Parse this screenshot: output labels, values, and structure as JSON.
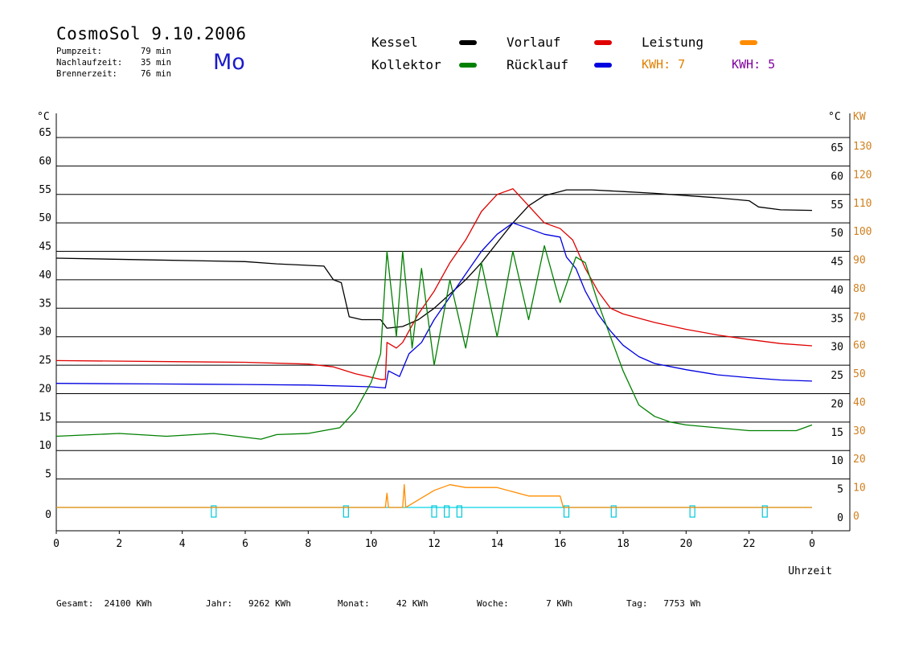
{
  "header": {
    "title": "CosmoSol 9.10.2006",
    "day": "Mo",
    "stats": [
      {
        "label": "Pumpzeit:",
        "value": "79 min"
      },
      {
        "label": "Nachlaufzeit:",
        "value": "35 min"
      },
      {
        "label": "Brennerzeit:",
        "value": "76 min"
      }
    ]
  },
  "legend": {
    "items": [
      {
        "label": "Kessel",
        "color": "#000000"
      },
      {
        "label": "Vorlauf",
        "color": "#e00000"
      },
      {
        "label": "Leistung",
        "color": "#ff8c00"
      },
      {
        "label": "Kollektor",
        "color": "#008000"
      },
      {
        "label": "Rücklauf",
        "color": "#0000e0"
      }
    ],
    "kwh1": {
      "text": "KWH: 7",
      "color": "#e08000"
    },
    "kwh2": {
      "text": "KWH: 5",
      "color": "#8000a0"
    }
  },
  "footer": [
    {
      "label": "Gesamt:",
      "value": "24100 KWh"
    },
    {
      "label": "Jahr:",
      "value": "9262 KWh"
    },
    {
      "label": "Monat:",
      "value": "42 KWh"
    },
    {
      "label": "Woche:",
      "value": "7 KWh"
    },
    {
      "label": "Tag:",
      "value": "7753 Wh"
    }
  ],
  "chart_data": {
    "type": "line",
    "xlabel": "Uhrzeit",
    "y_left_unit": "°C",
    "y_right_unit": "°C",
    "y_power_unit": "KW",
    "xlim": [
      0,
      24
    ],
    "ylim": [
      0,
      65
    ],
    "x_ticks": [
      "0",
      "2",
      "4",
      "6",
      "8",
      "10",
      "12",
      "14",
      "16",
      "18",
      "20",
      "22",
      "0"
    ],
    "y_ticks": [
      0,
      5,
      10,
      15,
      20,
      25,
      30,
      35,
      40,
      45,
      50,
      55,
      60,
      65
    ],
    "y_power_ticks": [
      0,
      10,
      20,
      30,
      40,
      50,
      60,
      70,
      80,
      90,
      100,
      110,
      120,
      130
    ],
    "grid": true,
    "series": [
      {
        "name": "Kessel",
        "color": "#000000",
        "points": [
          [
            0,
            43.8
          ],
          [
            3,
            43.5
          ],
          [
            6,
            43.2
          ],
          [
            7,
            42.8
          ],
          [
            8.5,
            42.4
          ],
          [
            8.8,
            40
          ],
          [
            9.05,
            39.5
          ],
          [
            9.3,
            33.5
          ],
          [
            9.7,
            33
          ],
          [
            10.3,
            33
          ],
          [
            10.5,
            31.5
          ],
          [
            11,
            31.8
          ],
          [
            11.5,
            33
          ],
          [
            12,
            35
          ],
          [
            12.5,
            37.5
          ],
          [
            13,
            40
          ],
          [
            13.5,
            43
          ],
          [
            14,
            46.5
          ],
          [
            14.5,
            50
          ],
          [
            15,
            53
          ],
          [
            15.5,
            54.8
          ],
          [
            16,
            55.5
          ],
          [
            16.2,
            55.8
          ],
          [
            17,
            55.8
          ],
          [
            18,
            55.5
          ],
          [
            19,
            55.2
          ],
          [
            20,
            54.8
          ],
          [
            21,
            54.4
          ],
          [
            22,
            53.9
          ],
          [
            22.3,
            52.8
          ],
          [
            23,
            52.3
          ],
          [
            24,
            52.2
          ]
        ]
      },
      {
        "name": "Vorlauf",
        "color": "#e00000",
        "points": [
          [
            0,
            25.8
          ],
          [
            4,
            25.6
          ],
          [
            6,
            25.5
          ],
          [
            8,
            25.2
          ],
          [
            8.8,
            24.7
          ],
          [
            9.5,
            23.5
          ],
          [
            10.3,
            22.5
          ],
          [
            10.45,
            22.5
          ],
          [
            10.5,
            29
          ],
          [
            10.8,
            28
          ],
          [
            11,
            29
          ],
          [
            11.5,
            34
          ],
          [
            12,
            38
          ],
          [
            12.5,
            43
          ],
          [
            13,
            47
          ],
          [
            13.5,
            52
          ],
          [
            14,
            55
          ],
          [
            14.5,
            56
          ],
          [
            15,
            53
          ],
          [
            15.5,
            50
          ],
          [
            16,
            49
          ],
          [
            16.4,
            47
          ],
          [
            16.8,
            42
          ],
          [
            17.2,
            38
          ],
          [
            17.6,
            35
          ],
          [
            18,
            34
          ],
          [
            19,
            32.5
          ],
          [
            20,
            31.3
          ],
          [
            21,
            30.3
          ],
          [
            22,
            29.5
          ],
          [
            23,
            28.8
          ],
          [
            24,
            28.4
          ]
        ]
      },
      {
        "name": "Rücklauf",
        "color": "#0000e0",
        "points": [
          [
            0,
            21.8
          ],
          [
            3,
            21.7
          ],
          [
            6,
            21.6
          ],
          [
            8,
            21.5
          ],
          [
            10,
            21.2
          ],
          [
            10.45,
            21
          ],
          [
            10.55,
            24
          ],
          [
            10.9,
            23
          ],
          [
            11.2,
            27
          ],
          [
            11.6,
            29
          ],
          [
            12,
            33
          ],
          [
            12.5,
            37
          ],
          [
            13,
            41
          ],
          [
            13.5,
            45
          ],
          [
            14,
            48
          ],
          [
            14.5,
            50
          ],
          [
            15,
            49
          ],
          [
            15.5,
            48
          ],
          [
            16,
            47.5
          ],
          [
            16.2,
            44
          ],
          [
            16.5,
            42
          ],
          [
            16.8,
            38
          ],
          [
            17.2,
            34
          ],
          [
            17.6,
            31
          ],
          [
            18,
            28.5
          ],
          [
            18.5,
            26.5
          ],
          [
            19,
            25.3
          ],
          [
            20,
            24.2
          ],
          [
            21,
            23.3
          ],
          [
            22,
            22.8
          ],
          [
            23,
            22.4
          ],
          [
            24,
            22.2
          ]
        ]
      },
      {
        "name": "Kollektor",
        "color": "#008000",
        "points": [
          [
            0,
            12.5
          ],
          [
            2,
            13
          ],
          [
            3.5,
            12.5
          ],
          [
            5,
            13
          ],
          [
            6.5,
            12
          ],
          [
            7,
            12.8
          ],
          [
            8,
            13
          ],
          [
            9,
            14
          ],
          [
            9.5,
            17
          ],
          [
            10,
            22
          ],
          [
            10.3,
            27
          ],
          [
            10.5,
            45
          ],
          [
            10.8,
            30
          ],
          [
            11,
            45
          ],
          [
            11.3,
            28
          ],
          [
            11.6,
            42
          ],
          [
            12,
            25
          ],
          [
            12.5,
            40
          ],
          [
            13,
            28
          ],
          [
            13.5,
            43
          ],
          [
            14,
            30
          ],
          [
            14.5,
            45
          ],
          [
            15,
            33
          ],
          [
            15.5,
            46
          ],
          [
            16,
            36
          ],
          [
            16.5,
            44
          ],
          [
            16.8,
            43
          ],
          [
            17.2,
            36
          ],
          [
            17.6,
            30
          ],
          [
            18,
            24
          ],
          [
            18.5,
            18
          ],
          [
            19,
            16
          ],
          [
            19.5,
            15
          ],
          [
            20,
            14.5
          ],
          [
            22,
            13.5
          ],
          [
            23.5,
            13.5
          ],
          [
            24,
            14.5
          ]
        ]
      },
      {
        "name": "Leistung",
        "color": "#ff8c00",
        "points": [
          [
            0,
            0
          ],
          [
            10.45,
            0
          ],
          [
            10.5,
            2.5
          ],
          [
            10.55,
            0
          ],
          [
            11,
            0
          ],
          [
            11.05,
            4
          ],
          [
            11.1,
            0
          ],
          [
            12,
            3
          ],
          [
            12.5,
            4
          ],
          [
            13,
            3.5
          ],
          [
            14,
            3.5
          ],
          [
            15,
            2
          ],
          [
            16,
            2
          ],
          [
            16.1,
            0
          ],
          [
            24,
            0
          ]
        ]
      }
    ],
    "pump_markers_hours": [
      5.0,
      9.2,
      12.0,
      12.4,
      12.8,
      16.2,
      17.7,
      20.2,
      22.5
    ]
  }
}
